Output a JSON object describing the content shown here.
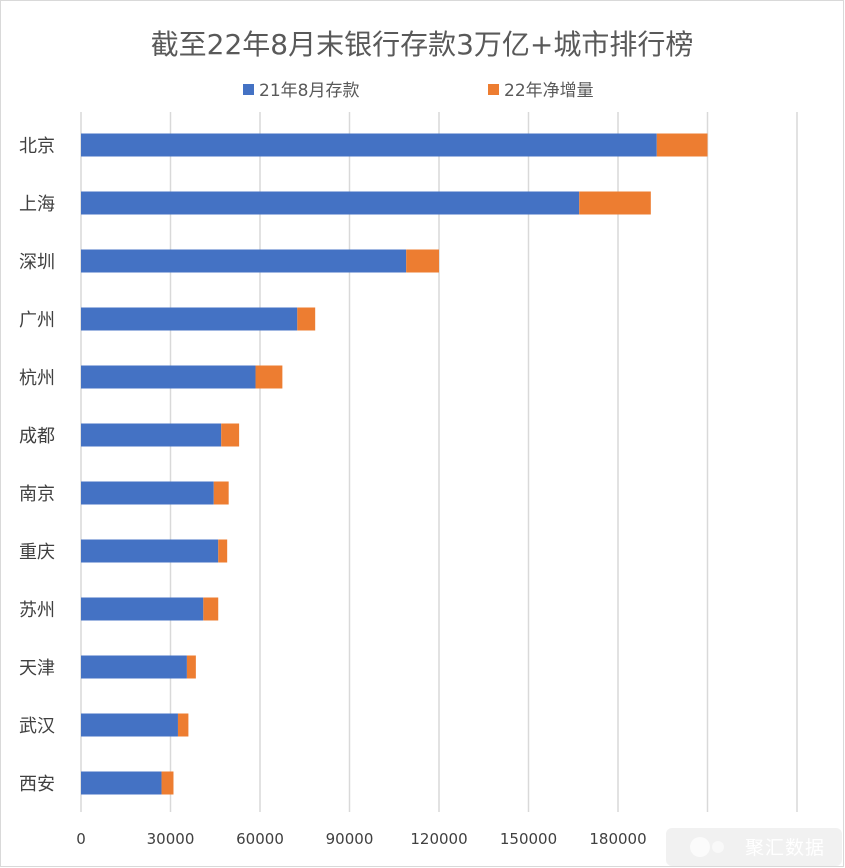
{
  "chart_data": {
    "type": "bar",
    "orientation": "horizontal",
    "stacked": true,
    "title": "截至22年8月末银行存款3万亿+城市排行榜",
    "categories": [
      "北京",
      "上海",
      "深圳",
      "广州",
      "杭州",
      "成都",
      "南京",
      "重庆",
      "苏州",
      "天津",
      "武汉",
      "西安"
    ],
    "series": [
      {
        "name": "21年8月存款",
        "color": "#4472c4",
        "values": [
          193000,
          167000,
          109000,
          72500,
          58500,
          47000,
          44500,
          46000,
          41000,
          35500,
          32500,
          27000
        ]
      },
      {
        "name": "22年净增量",
        "color": "#ed7d31",
        "values": [
          17000,
          24000,
          11000,
          6000,
          9000,
          6000,
          5000,
          3000,
          5000,
          3000,
          3500,
          4000
        ]
      }
    ],
    "xlim": [
      0,
      240000
    ],
    "xticks": [
      0,
      30000,
      60000,
      90000,
      120000,
      150000,
      180000
    ],
    "grid": true,
    "legend_position": "top"
  },
  "watermark": {
    "text": "聚汇数据"
  },
  "icons": {
    "watermark": "logo-icon"
  }
}
